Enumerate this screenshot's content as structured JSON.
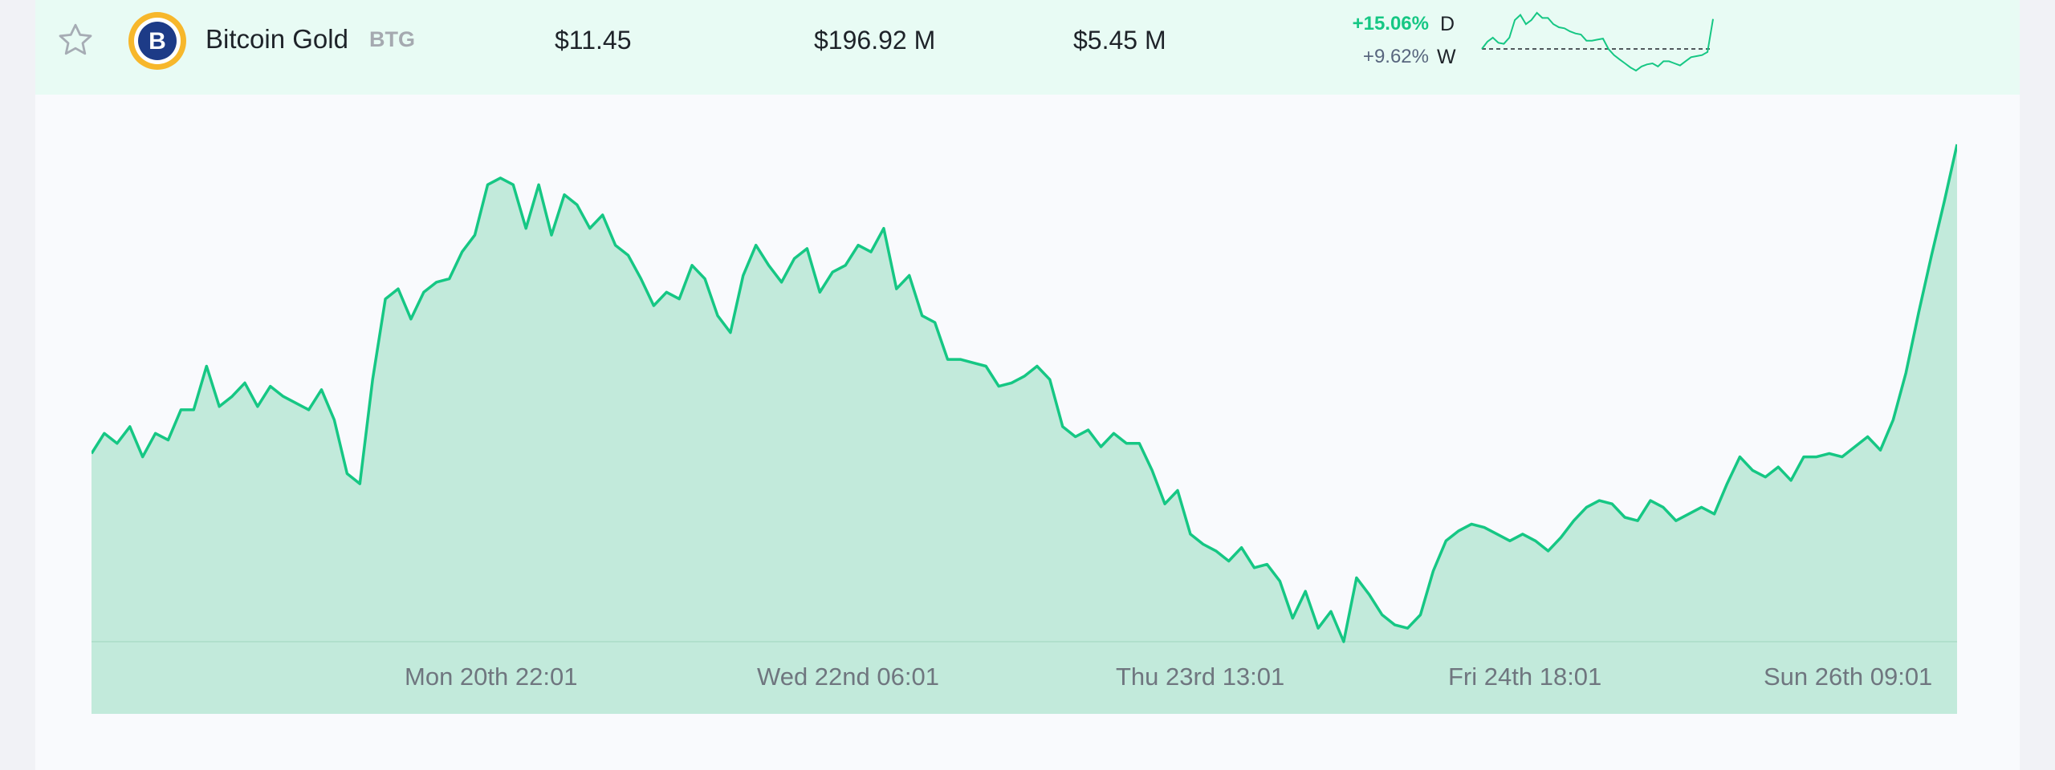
{
  "coin": {
    "name": "Bitcoin Gold",
    "symbol": "BTG",
    "price": "$11.45",
    "market_cap": "$196.92 M",
    "volume": "$5.45 M",
    "change_day": "+15.06%",
    "change_week": "+9.62%",
    "day_label": "D",
    "week_label": "W",
    "logo_glyph": "B",
    "icons": {
      "favorite": "star-outline-icon",
      "logo": "bitcoin-gold-logo"
    }
  },
  "colors": {
    "accent": "#16c784",
    "row_bg": "#e8fbf4",
    "area_fill": "#c2eadb",
    "logo_gold": "#f5a623",
    "logo_navy": "#1d3b87"
  },
  "chart_data": {
    "type": "area",
    "x_tick_labels": [
      "Mon 20th 22:01",
      "Wed 22nd 06:01",
      "Thu 23rd 13:01",
      "Fri 24th 18:01",
      "Sun 26th 09:01"
    ],
    "series": [
      {
        "values": [
          11.0,
          11.06,
          11.03,
          11.08,
          10.99,
          11.06,
          11.04,
          11.13,
          11.13,
          11.26,
          11.14,
          11.17,
          11.21,
          11.14,
          11.2,
          11.17,
          11.15,
          11.13,
          11.19,
          11.1,
          10.94,
          10.91,
          11.22,
          11.46,
          11.49,
          11.4,
          11.48,
          11.51,
          11.52,
          11.6,
          11.65,
          11.8,
          11.82,
          11.8,
          11.67,
          11.8,
          11.65,
          11.77,
          11.74,
          11.67,
          11.71,
          11.62,
          11.59,
          11.52,
          11.44,
          11.48,
          11.46,
          11.56,
          11.52,
          11.41,
          11.36,
          11.53,
          11.62,
          11.56,
          11.51,
          11.58,
          11.61,
          11.48,
          11.54,
          11.56,
          11.62,
          11.6,
          11.67,
          11.49,
          11.53,
          11.41,
          11.39,
          11.28,
          11.28,
          11.27,
          11.26,
          11.2,
          11.21,
          11.23,
          11.26,
          11.22,
          11.08,
          11.05,
          11.07,
          11.02,
          11.06,
          11.03,
          11.03,
          10.95,
          10.85,
          10.89,
          10.76,
          10.73,
          10.71,
          10.68,
          10.72,
          10.66,
          10.67,
          10.62,
          10.51,
          10.59,
          10.48,
          10.53,
          10.44,
          10.63,
          10.58,
          10.52,
          10.49,
          10.48,
          10.52,
          10.65,
          10.74,
          10.77,
          10.79,
          10.78,
          10.76,
          10.74,
          10.76,
          10.74,
          10.71,
          10.75,
          10.8,
          10.84,
          10.86,
          10.85,
          10.81,
          10.8,
          10.86,
          10.84,
          10.8,
          10.82,
          10.84,
          10.82,
          10.91,
          10.99,
          10.95,
          10.93,
          10.96,
          10.92,
          10.99,
          10.99,
          11.0,
          10.99,
          11.02,
          11.05,
          11.01,
          11.1,
          11.24,
          11.42,
          11.59,
          11.75,
          11.92
        ]
      }
    ],
    "x_range": [
      0,
      144
    ]
  },
  "sparkline": {
    "values": [
      0.0,
      0.07,
      0.11,
      0.06,
      0.05,
      0.11,
      0.28,
      0.33,
      0.24,
      0.28,
      0.35,
      0.3,
      0.3,
      0.24,
      0.21,
      0.2,
      0.17,
      0.15,
      0.14,
      0.08,
      0.08,
      0.09,
      0.1,
      0.0,
      -0.06,
      -0.1,
      -0.14,
      -0.18,
      -0.21,
      -0.17,
      -0.15,
      -0.14,
      -0.17,
      -0.12,
      -0.12,
      -0.14,
      -0.16,
      -0.12,
      -0.08,
      -0.07,
      -0.06,
      -0.03,
      0.29
    ]
  }
}
